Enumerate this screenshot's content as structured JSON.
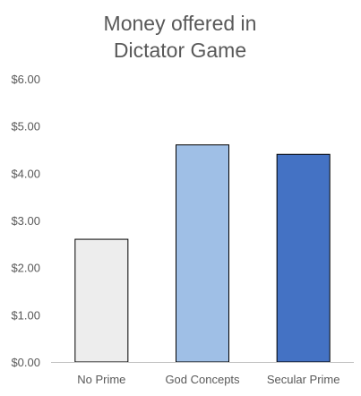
{
  "chart_data": {
    "type": "bar",
    "title_lines": [
      "Money offered in",
      "Dictator Game"
    ],
    "categories": [
      "No Prime",
      "God Concepts",
      "Secular Prime"
    ],
    "values": [
      2.6,
      4.6,
      4.4
    ],
    "bar_colors": [
      "#ededed",
      "#9fbfe6",
      "#4472c4"
    ],
    "ylim": [
      0,
      6
    ],
    "y_ticks": [
      0,
      1,
      2,
      3,
      4,
      5,
      6
    ],
    "y_tick_labels": [
      "$0.00",
      "$1.00",
      "$2.00",
      "$3.00",
      "$4.00",
      "$5.00",
      "$6.00"
    ],
    "xlabel": "",
    "ylabel": "",
    "grid": false,
    "legend": "none"
  }
}
